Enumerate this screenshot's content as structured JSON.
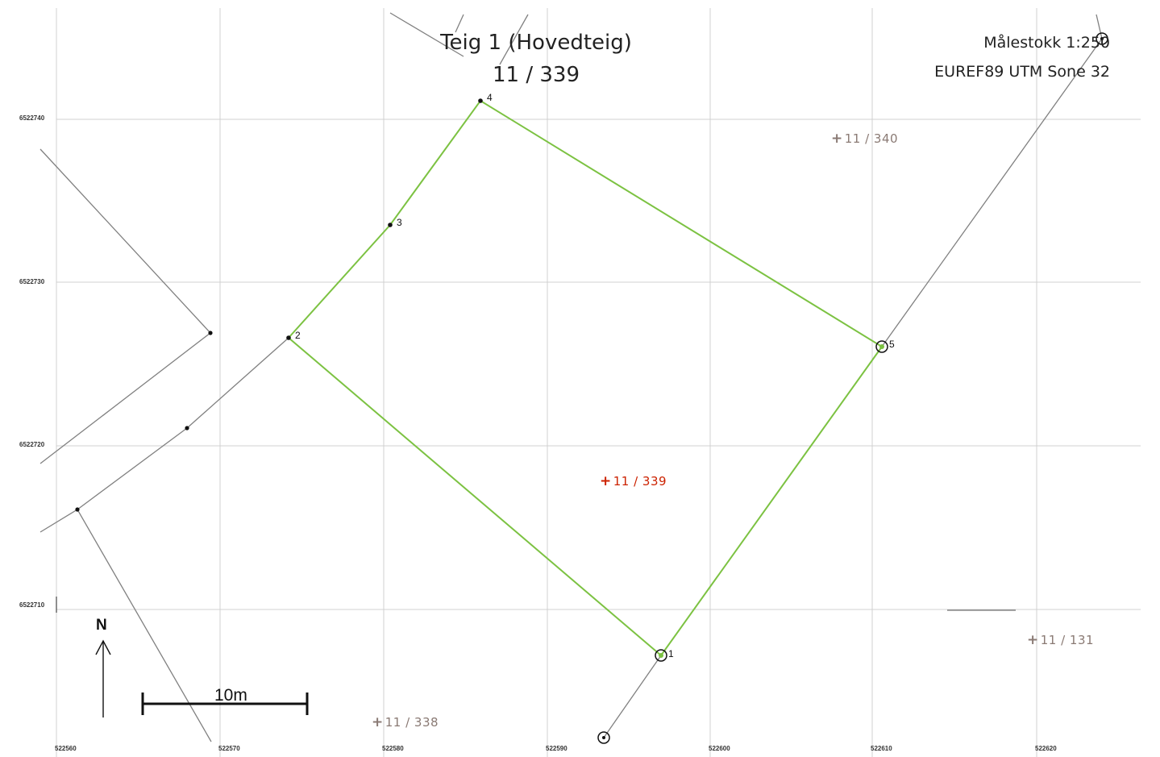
{
  "header": {
    "title": "Teig 1 (Hovedteig)",
    "subtitle": "11 / 339"
  },
  "info": {
    "scale": "Målestokk 1:250",
    "crs": "EUREF89 UTM Sone 32"
  },
  "grid": {
    "eastings": [
      "522560",
      "522570",
      "522580",
      "522590",
      "522600",
      "522610",
      "522620"
    ],
    "northings": [
      "6522740",
      "6522730",
      "6522720",
      "6522710"
    ]
  },
  "parcels": [
    {
      "label": "11 / 339",
      "color": "#cc2200",
      "current": true
    },
    {
      "label": "11 / 340",
      "color": "#8a7a74",
      "current": false
    },
    {
      "label": "11 / 131",
      "color": "#8a7a74",
      "current": false
    },
    {
      "label": "11 / 338",
      "color": "#8a7a74",
      "current": false
    }
  ],
  "boundary_points": [
    "1",
    "2",
    "3",
    "4",
    "5"
  ],
  "colors": {
    "boundary": "#7cc242",
    "neighbor_line": "#808080",
    "grid": "#d0d0d0"
  },
  "north_arrow": {
    "label": "N"
  },
  "scale_bar": {
    "label": "10m"
  }
}
